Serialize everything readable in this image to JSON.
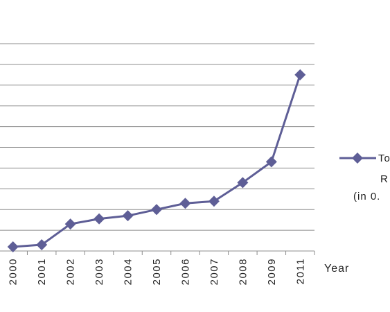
{
  "chart_data": {
    "type": "line",
    "x": [
      "2000",
      "2001",
      "2002",
      "2003",
      "2004",
      "2005",
      "2006",
      "2007",
      "2008",
      "2009",
      "2011"
    ],
    "series": [
      {
        "values": [
          0.2,
          0.3,
          1.3,
          1.55,
          1.7,
          2.0,
          2.3,
          2.4,
          3.3,
          4.3,
          8.5
        ]
      }
    ],
    "xlabel": "Year",
    "ylabel": "",
    "ylim": [
      0,
      10
    ],
    "grid": true,
    "legend": {
      "position": "right",
      "lines": [
        "To",
        "R",
        "(in 0."
      ]
    },
    "colors": {
      "series": "#5e5e96",
      "grid": "#8c8c8c",
      "axis": "#8c8c8c"
    },
    "marker": "diamond"
  }
}
